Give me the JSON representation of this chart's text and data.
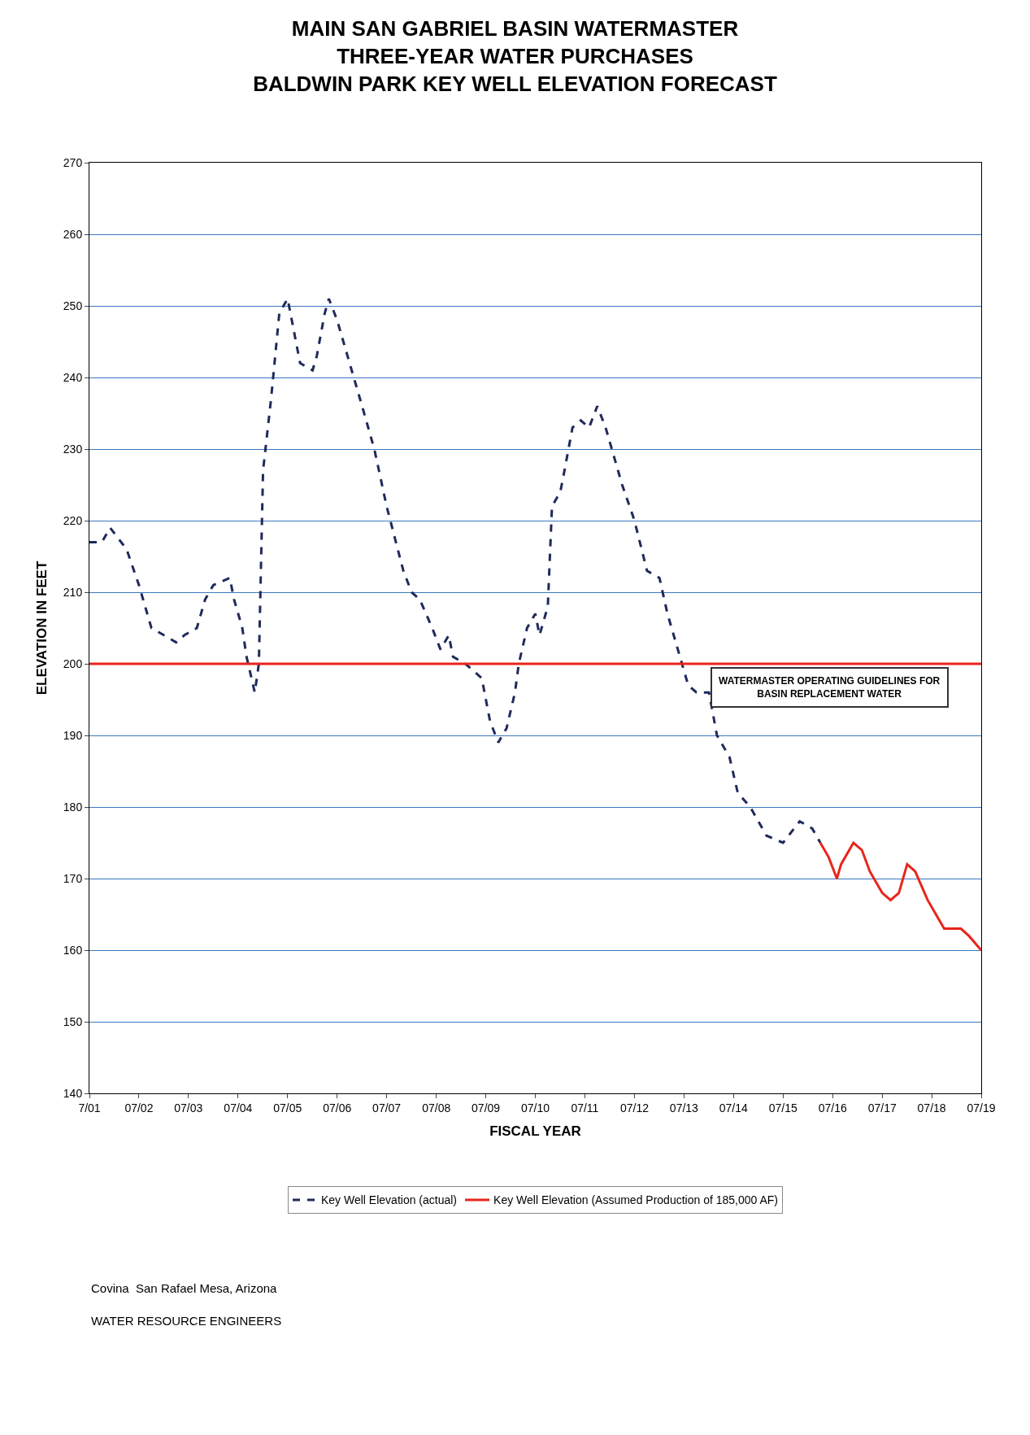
{
  "chart_data": {
    "type": "line",
    "title": "MAIN SAN GABRIEL BASIN WATERMASTER",
    "subtitle": "THREE-YEAR WATER PURCHASES\nBALDWIN PARK KEY WELL ELEVATION FORECAST",
    "xlabel": "FISCAL YEAR",
    "ylabel": "ELEVATION IN FEET",
    "xlim": [
      "2001-07-01",
      "2019-07-01"
    ],
    "ylim": [
      140,
      270
    ],
    "xticks": [
      {
        "value": "2001-07-01",
        "label": "7/01"
      },
      {
        "value": "2002-07-01",
        "label": "07/02"
      },
      {
        "value": "2003-07-01",
        "label": "07/03"
      },
      {
        "value": "2004-07-01",
        "label": "07/04"
      },
      {
        "value": "2005-07-01",
        "label": "07/05"
      },
      {
        "value": "2006-07-01",
        "label": "07/06"
      },
      {
        "value": "2007-07-01",
        "label": "07/07"
      },
      {
        "value": "2008-07-01",
        "label": "07/08"
      },
      {
        "value": "2009-07-01",
        "label": "07/09"
      },
      {
        "value": "2010-07-01",
        "label": "07/10"
      },
      {
        "value": "2011-07-01",
        "label": "07/11"
      },
      {
        "value": "2012-07-01",
        "label": "07/12"
      },
      {
        "value": "2013-07-01",
        "label": "07/13"
      },
      {
        "value": "2014-07-01",
        "label": "07/14"
      },
      {
        "value": "2015-07-01",
        "label": "07/15"
      },
      {
        "value": "2016-07-01",
        "label": "07/16"
      },
      {
        "value": "2017-07-01",
        "label": "07/17"
      },
      {
        "value": "2018-07-01",
        "label": "07/18"
      },
      {
        "value": "2019-07-01",
        "label": "07/19"
      }
    ],
    "yticks": [
      140,
      150,
      160,
      170,
      180,
      190,
      200,
      210,
      220,
      230,
      240,
      250,
      260,
      270
    ],
    "grid": "y",
    "legend": "bottom",
    "marker": "none",
    "series": [
      {
        "name": "Key Well Elevation (actual)",
        "color": "#1f2a5c",
        "line_style": "dashed",
        "x": [
          "2001-07",
          "2001-10",
          "2001-12",
          "2002-04",
          "2002-07",
          "2002-10",
          "2003-01",
          "2003-04",
          "2003-06",
          "2003-09",
          "2003-11",
          "2004-01",
          "2004-05",
          "2004-06",
          "2004-08",
          "2004-09",
          "2004-11",
          "2004-12",
          "2005-01",
          "2005-03",
          "2005-05",
          "2005-07",
          "2005-08",
          "2005-10",
          "2006-01",
          "2006-02",
          "2006-04",
          "2006-05",
          "2006-07",
          "2006-10",
          "2007-01",
          "2007-04",
          "2007-07",
          "2007-11",
          "2008-01",
          "2008-03",
          "2008-06",
          "2008-08",
          "2008-10",
          "2008-11",
          "2009-02",
          "2009-06",
          "2009-08",
          "2009-10",
          "2009-12",
          "2010-02",
          "2010-03",
          "2010-05",
          "2010-07",
          "2010-08",
          "2010-10",
          "2010-11",
          "2011-01",
          "2011-02",
          "2011-04",
          "2011-06",
          "2011-08",
          "2011-10",
          "2011-12",
          "2012-04",
          "2012-07",
          "2012-10",
          "2013-01",
          "2013-03",
          "2013-06",
          "2013-08",
          "2013-10",
          "2014-01",
          "2014-03",
          "2014-06",
          "2014-08",
          "2014-11",
          "2015-03",
          "2015-07",
          "2015-11",
          "2016-02",
          "2016-04"
        ],
        "values": [
          217,
          217,
          219,
          216,
          211,
          205,
          204,
          203,
          204,
          205,
          209,
          211,
          212,
          209,
          205,
          201,
          196,
          200,
          227,
          237,
          249,
          251,
          248,
          242,
          241,
          243,
          249,
          251,
          248,
          242,
          236,
          230,
          222,
          213,
          210,
          209,
          205,
          202,
          204,
          201,
          200,
          198,
          192,
          189,
          191,
          196,
          200,
          205,
          207,
          204,
          208,
          222,
          224,
          227,
          233,
          234,
          233,
          236,
          233,
          225,
          220,
          213,
          212,
          207,
          201,
          197,
          196,
          196,
          190,
          187,
          182,
          180,
          176,
          175,
          178,
          177,
          175
        ]
      },
      {
        "name": "Key Well Elevation (Assumed Production of 185,000 AF)",
        "color": "#e8251b",
        "line_style": "solid",
        "x": [
          "2016-04",
          "2016-06",
          "2016-08",
          "2016-09",
          "2016-12",
          "2017-02",
          "2017-04",
          "2017-07",
          "2017-09",
          "2017-11",
          "2018-01",
          "2018-03",
          "2018-06",
          "2018-08",
          "2018-10",
          "2018-12",
          "2019-02",
          "2019-04",
          "2019-07"
        ],
        "values": [
          175,
          173,
          170,
          172,
          175,
          174,
          171,
          168,
          167,
          168,
          172,
          171,
          167,
          165,
          163,
          163,
          163,
          162,
          160
        ]
      }
    ],
    "ref_lines": [
      {
        "axis": "y",
        "value": 200,
        "color": "#e8251b",
        "line_style": "solid",
        "label": "WATERMASTER OPERATING GUIDELINES FOR\nBASIN REPLACEMENT WATER"
      }
    ],
    "annotations": [
      "Covina  San Rafael Mesa, Arizona",
      "WATER RESOURCE ENGINEERS"
    ]
  }
}
